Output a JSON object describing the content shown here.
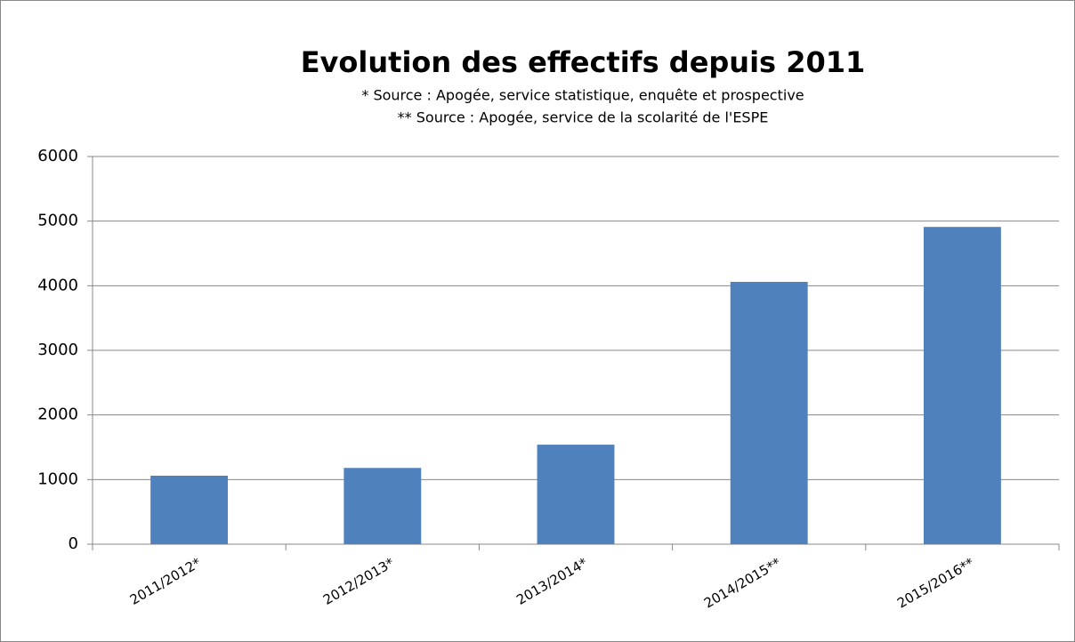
{
  "chart_data": {
    "type": "bar",
    "title": "Evolution des effectifs depuis 2011",
    "subtitle": [
      "* Source : Apogée, service statistique, enquête et prospective",
      "** Source : Apogée, service de la scolarité de l'ESPE"
    ],
    "categories": [
      "2011/2012*",
      "2012/2013*",
      "2013/2014*",
      "2014/2015**",
      "2015/2016**"
    ],
    "values": [
      1060,
      1180,
      1540,
      4060,
      4910
    ],
    "color": "#4f81bd",
    "ylim": [
      0,
      6000
    ],
    "yticks": [
      0,
      1000,
      2000,
      3000,
      4000,
      5000,
      6000
    ],
    "grid": true
  }
}
